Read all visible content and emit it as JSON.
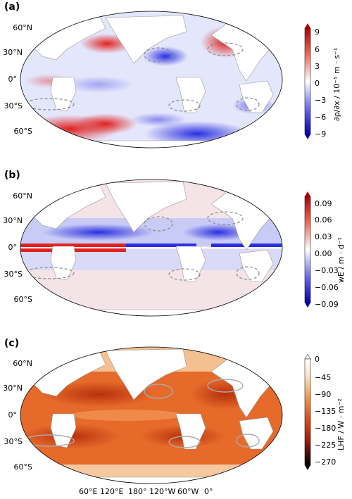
{
  "panels": [
    {
      "label": "(a)",
      "lat_labels": [
        "60°N",
        "30°N",
        "0°",
        "30°S",
        "60°S"
      ],
      "colorbar": {
        "ticks": [
          "9",
          "6",
          "3",
          "0",
          "−3",
          "−6",
          "−9"
        ],
        "title": "∂ρ/∂x / 10⁻⁵ m · s⁻¹",
        "cmap": "bwr"
      }
    },
    {
      "label": "(b)",
      "lat_labels": [
        "60°N",
        "30°N",
        "0°",
        "30°S",
        "60°S"
      ],
      "colorbar": {
        "ticks": [
          "0.09",
          "0.06",
          "0.03",
          "0.00",
          "−0.03",
          "−0.06",
          "−0.09"
        ],
        "title": "wE / m · d⁻¹",
        "cmap": "bwr"
      }
    },
    {
      "label": "(c)",
      "lat_labels": [
        "60°N",
        "30°N",
        "0°",
        "30°S",
        "60°S"
      ],
      "colorbar": {
        "ticks": [
          "0",
          "−45",
          "−90",
          "−135",
          "−180",
          "−225",
          "−270"
        ],
        "title": "LHF / W · m⁻²",
        "cmap": "gist_heat"
      }
    }
  ],
  "lon_labels": [
    "60°E",
    "120°E",
    "180°",
    "120°W",
    "60°W",
    "0°"
  ],
  "colors": {
    "red": "#e0221f",
    "blue": "#2a2fe0",
    "land": "#ffffff",
    "contour": "#888888"
  }
}
